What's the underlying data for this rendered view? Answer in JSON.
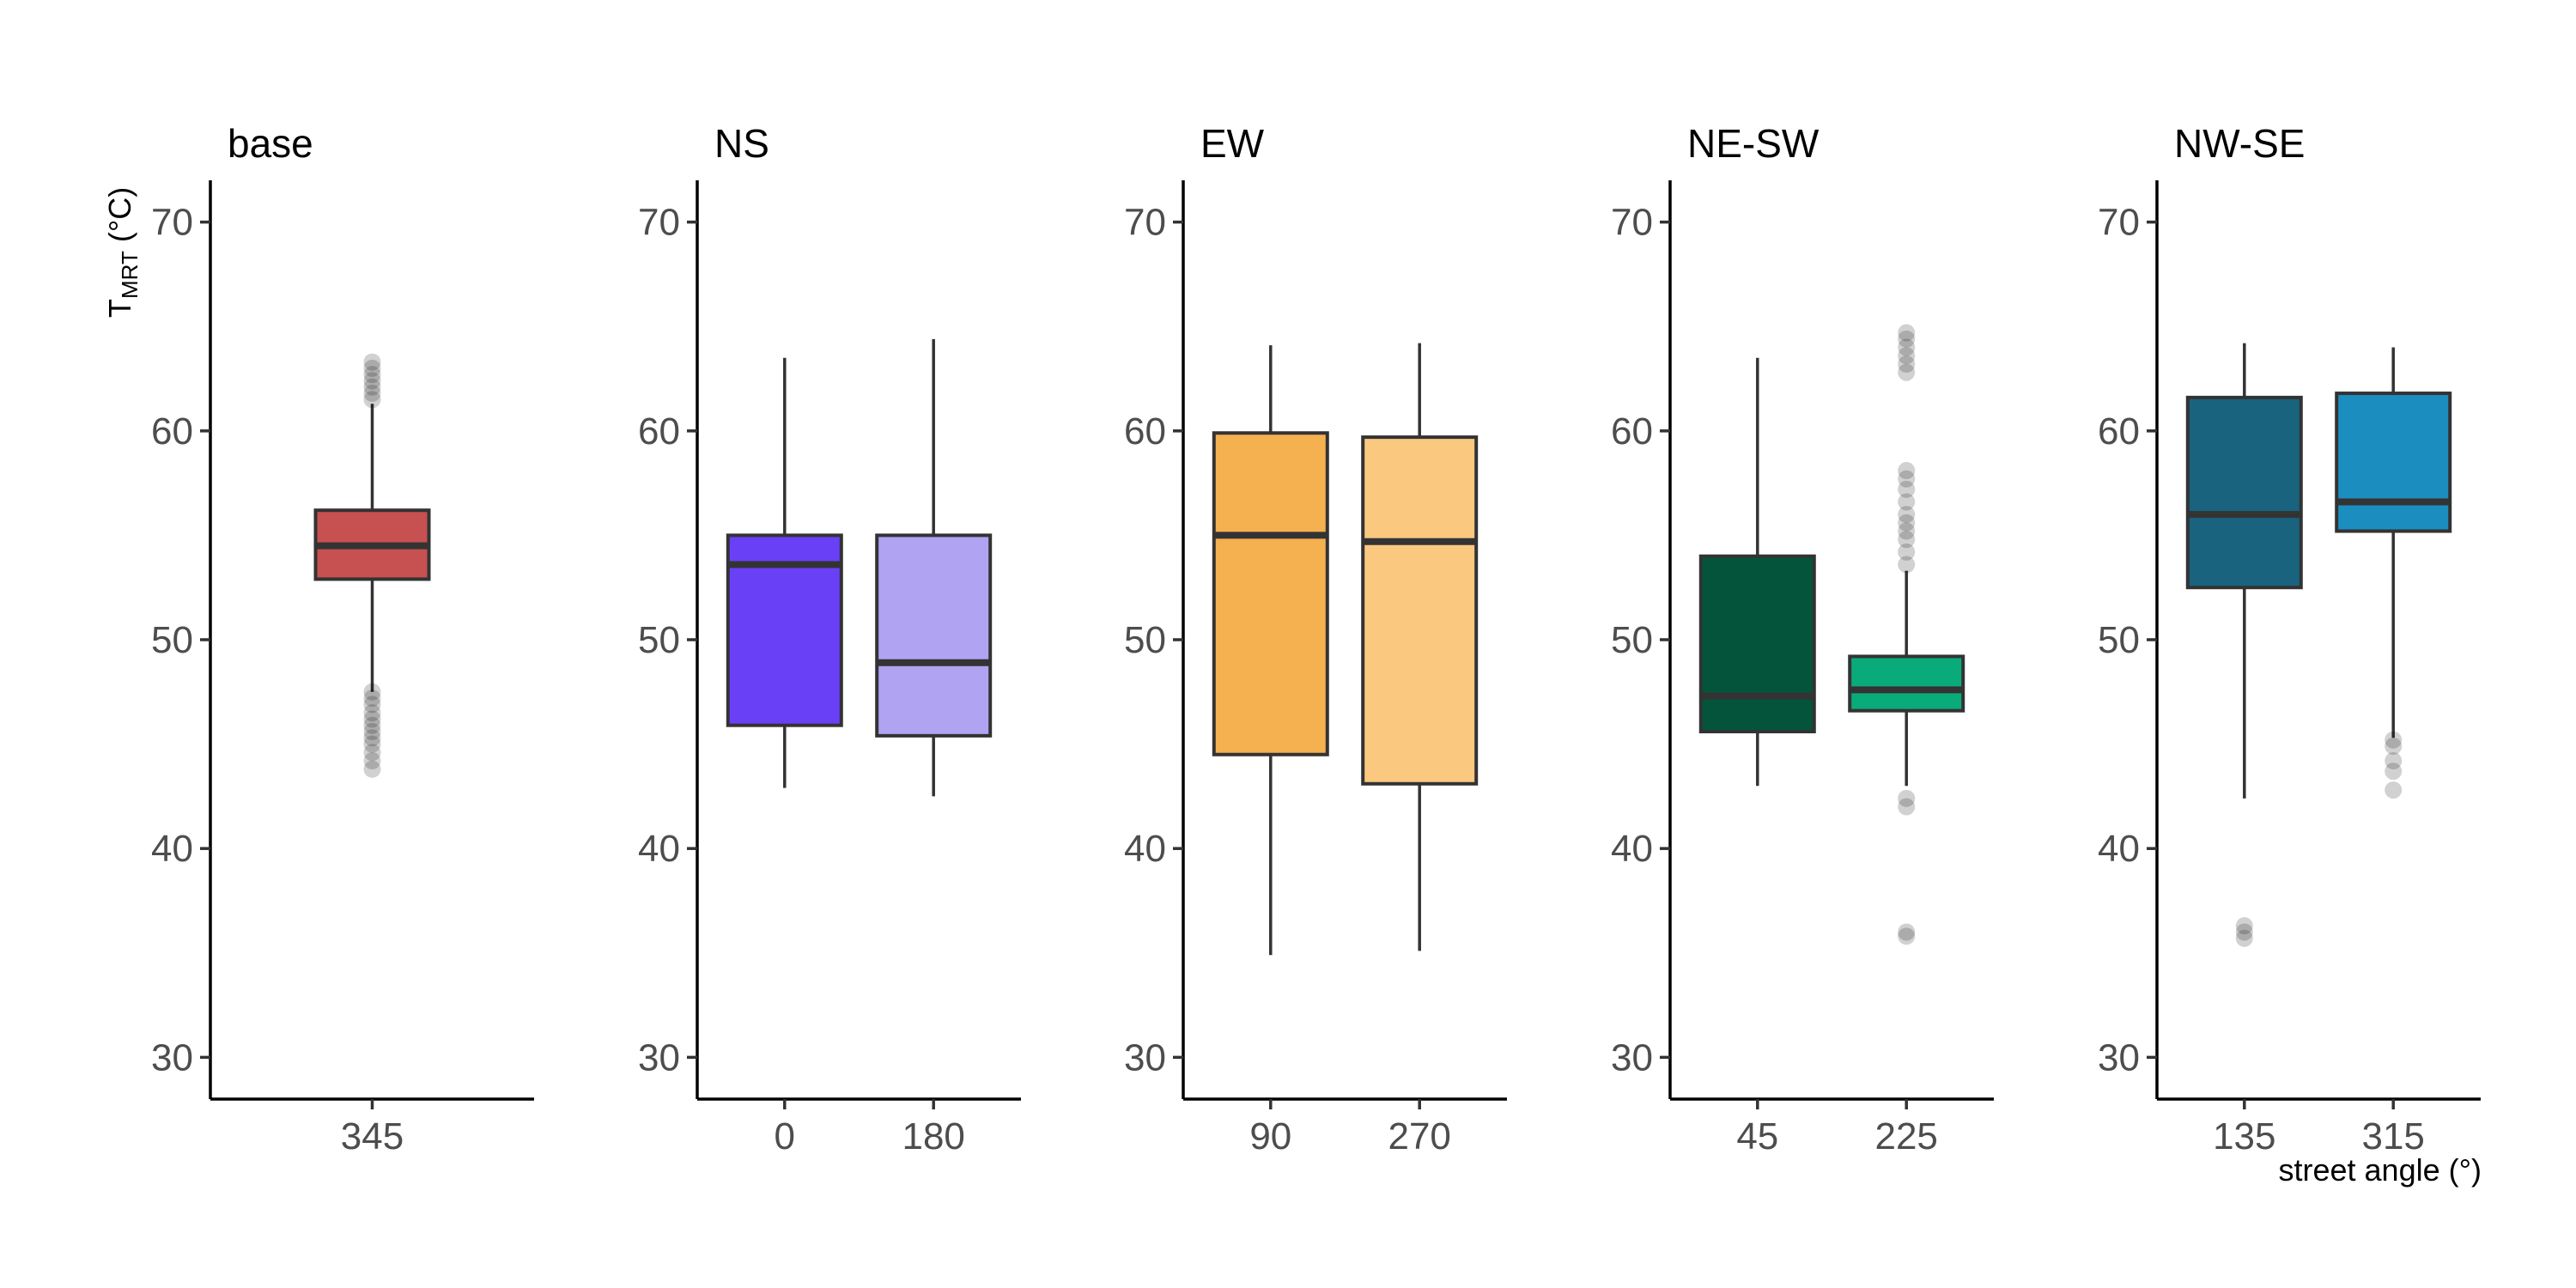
{
  "chart_data": {
    "type": "boxplot",
    "ylabel_main": "T",
    "ylabel_sub": "MRT",
    "ylabel_unit": "(°C)",
    "xlabel": "street angle (°)",
    "ylim": [
      28,
      72
    ],
    "yticks": [
      30,
      40,
      50,
      60,
      70
    ],
    "panels": [
      {
        "title": "base",
        "boxes": [
          {
            "category": "345",
            "color": "#c75050",
            "min": 47.5,
            "q1": 52.9,
            "median": 54.5,
            "q3": 56.2,
            "max": 61.3,
            "outliers": [
              43.8,
              44.2,
              44.6,
              45.0,
              45.3,
              45.6,
              45.9,
              46.2,
              46.5,
              46.9,
              47.2,
              47.5,
              61.5,
              61.8,
              62.1,
              62.4,
              62.7,
              63.0,
              63.3
            ]
          }
        ]
      },
      {
        "title": "NS",
        "boxes": [
          {
            "category": "0",
            "color": "#6940f5",
            "min": 42.9,
            "q1": 45.9,
            "median": 53.6,
            "q3": 55.0,
            "max": 63.5,
            "outliers": []
          },
          {
            "category": "180",
            "color": "#b0a3f2",
            "min": 42.5,
            "q1": 45.4,
            "median": 48.9,
            "q3": 55.0,
            "max": 64.4,
            "outliers": []
          }
        ]
      },
      {
        "title": "EW",
        "boxes": [
          {
            "category": "90",
            "color": "#f5b050",
            "min": 34.9,
            "q1": 44.5,
            "median": 55.0,
            "q3": 59.9,
            "max": 64.1,
            "outliers": []
          },
          {
            "category": "270",
            "color": "#fbc880",
            "min": 35.1,
            "q1": 43.1,
            "median": 54.7,
            "q3": 59.7,
            "max": 64.2,
            "outliers": []
          }
        ]
      },
      {
        "title": "NE-SW",
        "boxes": [
          {
            "category": "45",
            "color": "#04543c",
            "min": 43.0,
            "q1": 45.6,
            "median": 47.3,
            "q3": 54.0,
            "max": 63.5,
            "outliers": []
          },
          {
            "category": "225",
            "color": "#0aab7a",
            "min": 43.0,
            "q1": 46.6,
            "median": 47.6,
            "q3": 49.2,
            "max": 53.3,
            "outliers": [
              35.8,
              36.0,
              42.0,
              42.4,
              53.6,
              54.2,
              54.8,
              55.2,
              55.6,
              56.0,
              56.6,
              57.2,
              57.7,
              58.1,
              62.8,
              63.2,
              63.6,
              64.0,
              64.4,
              64.7
            ]
          }
        ]
      },
      {
        "title": "NW-SE",
        "boxes": [
          {
            "category": "135",
            "color": "#19637f",
            "min": 42.4,
            "q1": 52.5,
            "median": 56.0,
            "q3": 61.6,
            "max": 64.2,
            "outliers": [
              35.7,
              36.0,
              36.3
            ]
          },
          {
            "category": "315",
            "color": "#1b8ebf",
            "min": 45.3,
            "q1": 55.2,
            "median": 56.6,
            "q3": 61.8,
            "max": 64.0,
            "outliers": [
              42.8,
              43.7,
              44.2,
              44.9,
              45.2
            ]
          }
        ]
      }
    ]
  }
}
